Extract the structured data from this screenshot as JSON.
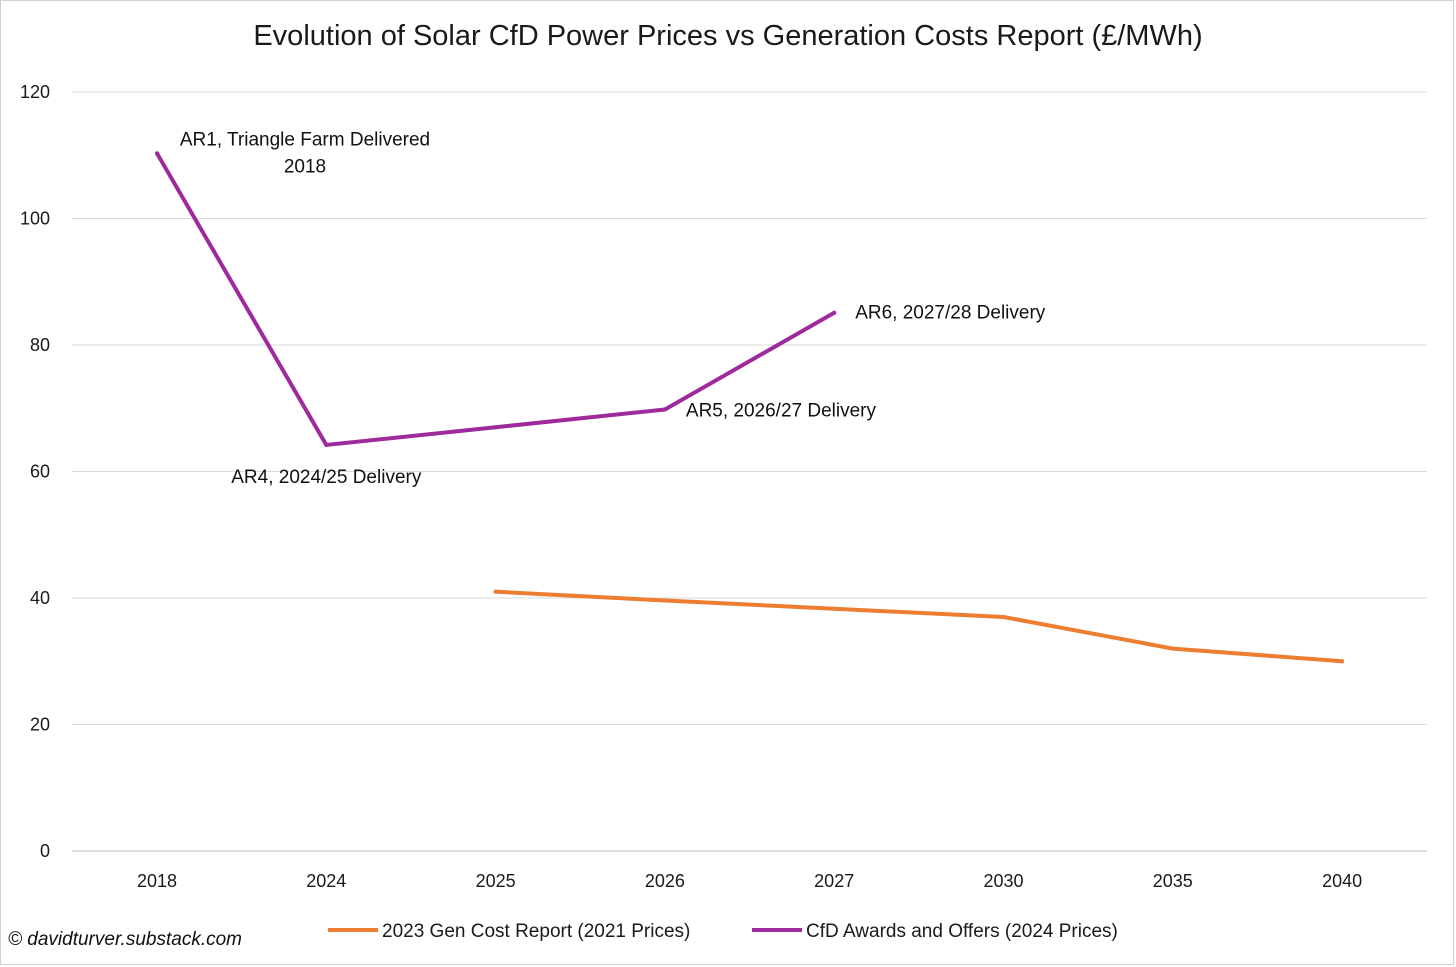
{
  "chart_data": {
    "type": "line",
    "title": "Evolution of Solar CfD Power Prices vs Generation Costs Report (£/MWh)",
    "categories": [
      "2018",
      "2024",
      "2025",
      "2026",
      "2027",
      "2030",
      "2035",
      "2040"
    ],
    "ylim": [
      0,
      120
    ],
    "yticks": [
      0,
      20,
      40,
      60,
      80,
      100,
      120
    ],
    "grid": true,
    "legend_position": "bottom",
    "series": [
      {
        "name": "2023 Gen Cost Report (2021 Prices)",
        "color": "#ED7D31",
        "values": [
          null,
          null,
          41,
          39.6,
          38.3,
          37,
          32,
          30
        ]
      },
      {
        "name": "CfD Awards and Offers (2024 Prices)",
        "color": "#9E2A9C",
        "values": [
          110.3,
          64.2,
          67,
          69.8,
          85.1,
          null,
          null,
          null
        ]
      }
    ],
    "annotations": [
      {
        "id": "ar1",
        "lines": [
          "AR1, Triangle Farm Delivered",
          "2018"
        ],
        "series": 1,
        "category": "2018"
      },
      {
        "id": "ar4",
        "lines": [
          "AR4, 2024/25 Delivery"
        ],
        "series": 1,
        "category": "2024"
      },
      {
        "id": "ar5",
        "lines": [
          "AR5, 2026/27 Delivery"
        ],
        "series": 1,
        "category": "2026"
      },
      {
        "id": "ar6",
        "lines": [
          "AR6, 2027/28 Delivery"
        ],
        "series": 1,
        "category": "2027"
      }
    ]
  },
  "credit": "© davidturver.substack.com"
}
